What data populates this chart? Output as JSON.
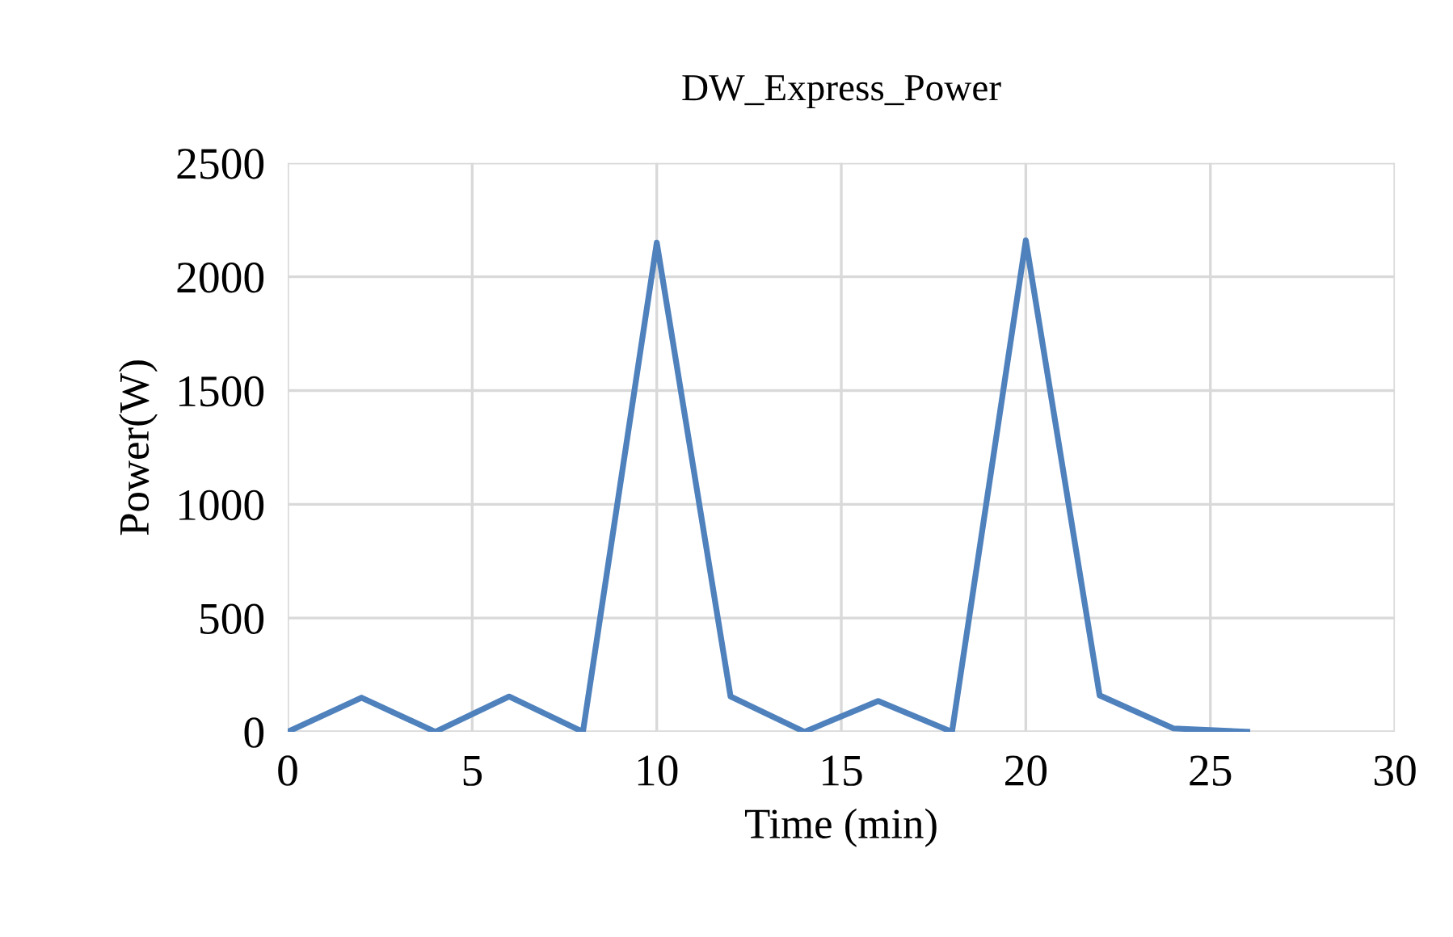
{
  "chart_data": {
    "type": "line",
    "title": "DW_Express_Power",
    "xlabel": "Time (min)",
    "ylabel": "Power(W)",
    "x": [
      0,
      2,
      4,
      6,
      8,
      10,
      12,
      14,
      16,
      18,
      20,
      22,
      24,
      26
    ],
    "series": [
      {
        "color": "#4f81bd",
        "values": [
          0,
          150,
          0,
          155,
          0,
          2150,
          155,
          0,
          135,
          0,
          2160,
          160,
          15,
          0
        ]
      }
    ],
    "xlim": [
      0,
      30
    ],
    "xticks": [
      0,
      5,
      10,
      15,
      20,
      25,
      30
    ],
    "ylim": [
      0,
      2500
    ],
    "yticks": [
      0,
      500,
      1000,
      1500,
      2000,
      2500
    ],
    "grid": true,
    "legend": false,
    "marker": "none",
    "line_style": "solid"
  }
}
